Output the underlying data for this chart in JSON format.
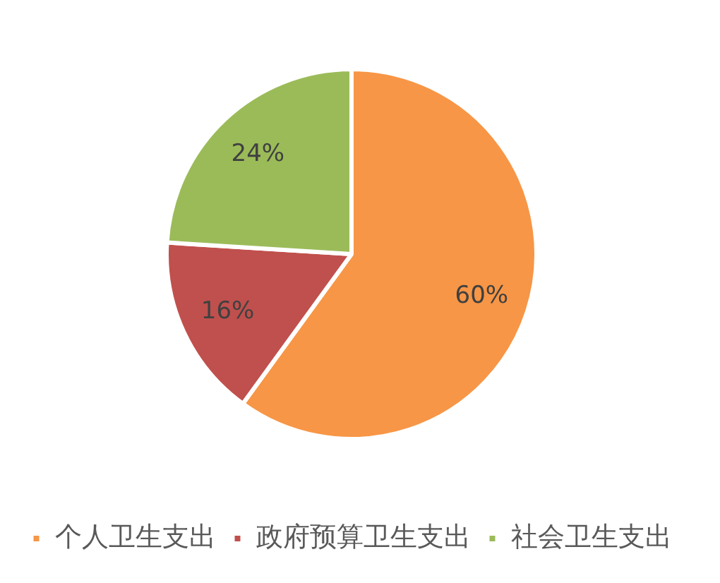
{
  "chart_data": {
    "type": "pie",
    "categories": [
      "个人卫生支出",
      "政府预算卫生支出",
      "社会卫生支出"
    ],
    "values": [
      60,
      16,
      24
    ],
    "colors": [
      "#f79646",
      "#c0504d",
      "#9bbb59"
    ],
    "value_labels": [
      "60%",
      "16%",
      "24%"
    ],
    "legend": "bottom"
  }
}
